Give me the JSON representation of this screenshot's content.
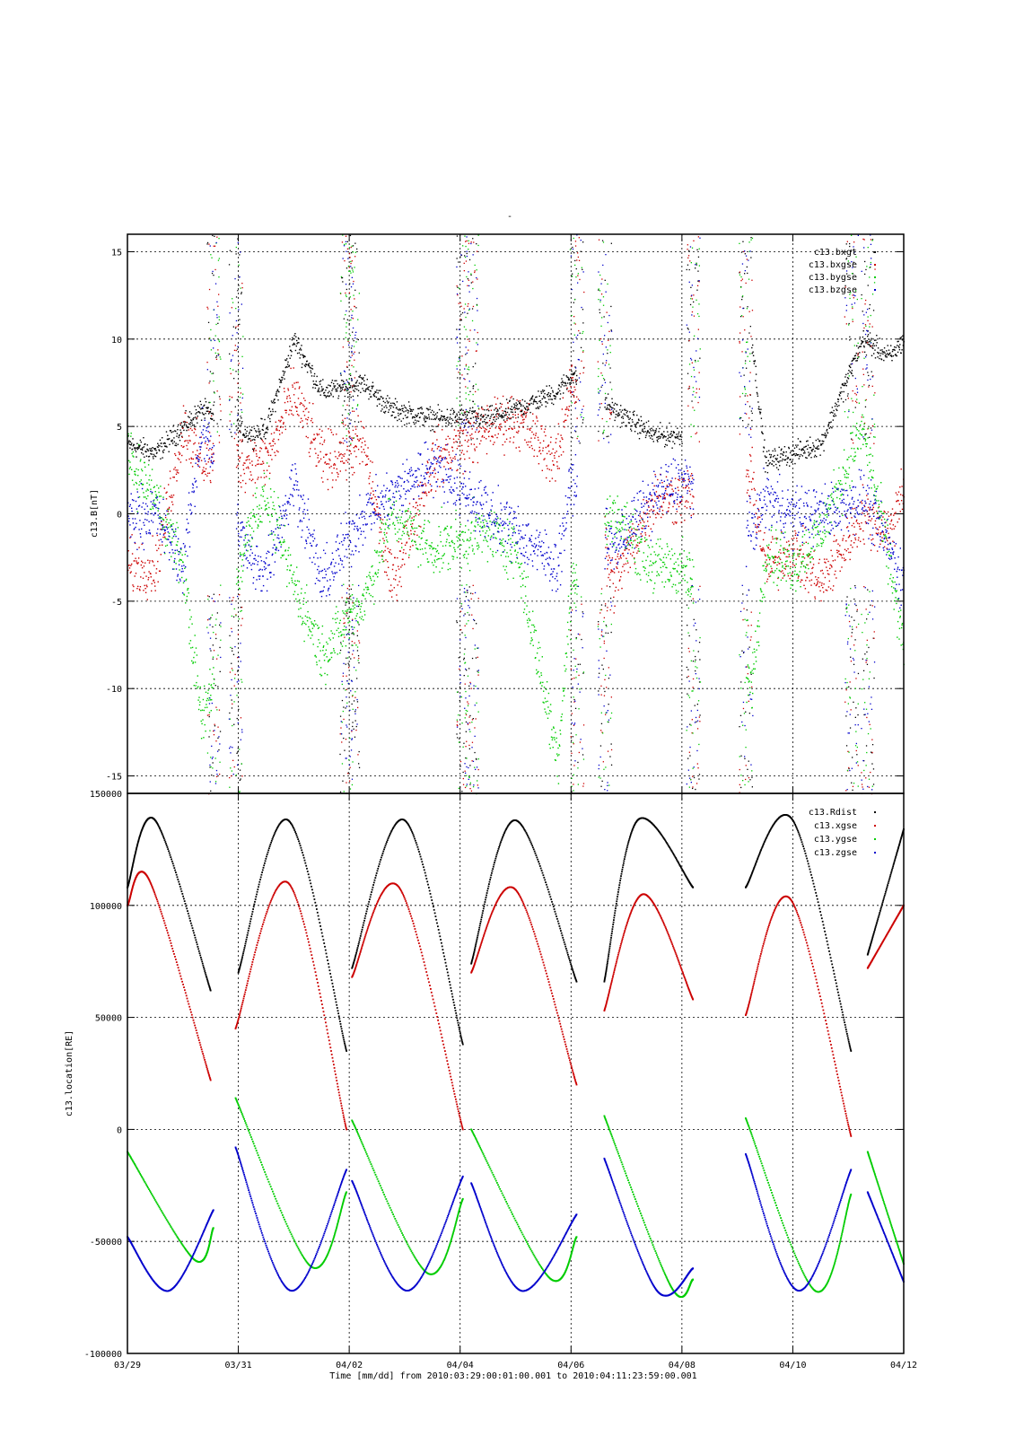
{
  "chart_data": [
    {
      "type": "scatter",
      "title": "-",
      "ylabel": "c13.B[nT]",
      "ylim": [
        -16,
        16
      ],
      "yticks": [
        -15,
        -10,
        -5,
        0,
        5,
        10,
        15
      ],
      "xlim": [
        "2010-03-29",
        "2010-04-12"
      ],
      "grid": true,
      "legend_position": "top-right",
      "series": [
        {
          "name": "c13.bxgt",
          "color": "#000000",
          "x": [
            "03/29",
            "03/29 12:00",
            "03/30",
            "03/30 08:00",
            "03/31 06:00",
            "03/31 12:00",
            "04/01",
            "04/01 12:00",
            "04/02 06:00",
            "04/02 18:00",
            "04/03 12:00",
            "04/04 12:00",
            "04/05",
            "04/05 18:00",
            "04/06",
            "04/06 18:00",
            "04/07 12:00",
            "04/08",
            "04/08 12:00",
            "04/09 06:00",
            "04/09 12:00",
            "04/10",
            "04/10 12:00",
            "04/11 06:00",
            "04/11 18:00",
            "04/12"
          ],
          "values": [
            4.0,
            3.5,
            5.0,
            6.0,
            4.5,
            5.0,
            10.0,
            7.0,
            7.5,
            6.0,
            5.5,
            5.5,
            6.0,
            7.0,
            8.0,
            6.0,
            4.5,
            4.5,
            null,
            10.0,
            3.0,
            3.5,
            4.0,
            10.0,
            9.0,
            10.0
          ]
        },
        {
          "name": "c13.bxgse",
          "color": "#cc0000",
          "x": [
            "03/29",
            "03/29 12:00",
            "03/30",
            "03/30 08:00",
            "03/31 06:00",
            "03/31 12:00",
            "04/01",
            "04/01 12:00",
            "04/02 06:00",
            "04/02 18:00",
            "04/03 12:00",
            "04/04 12:00",
            "04/05",
            "04/05 18:00",
            "04/06",
            "04/06 18:00",
            "04/07 12:00",
            "04/08",
            "04/09 06:00",
            "04/09 12:00",
            "04/10",
            "04/10 12:00",
            "04/11 06:00",
            "04/11 18:00",
            "04/12"
          ],
          "values": [
            -3.0,
            -3.0,
            5.0,
            3.0,
            3.0,
            3.0,
            7.0,
            3.0,
            4.0,
            -4.0,
            3.0,
            5.0,
            5.5,
            3.0,
            8.0,
            -4.0,
            1.0,
            1.0,
            2.0,
            -3.0,
            -2.0,
            -4.0,
            0.0,
            -1.0,
            2.0
          ]
        },
        {
          "name": "c13.bygse",
          "color": "#00cc00",
          "x": [
            "03/29",
            "03/29 12:00",
            "03/30",
            "03/30 08:00",
            "03/31 06:00",
            "03/31 12:00",
            "04/01",
            "04/01 12:00",
            "04/02 06:00",
            "04/02 18:00",
            "04/03 12:00",
            "04/04 12:00",
            "04/05",
            "04/05 18:00",
            "04/06",
            "04/06 18:00",
            "04/07 12:00",
            "04/08",
            "04/09 06:00",
            "04/09 12:00",
            "04/10",
            "04/10 12:00",
            "04/11 06:00",
            "04/11 18:00",
            "04/12"
          ],
          "values": [
            3.0,
            1.0,
            -3.0,
            -12.0,
            0.0,
            1.0,
            -4.0,
            -8.0,
            -5.0,
            0.0,
            -2.0,
            -1.0,
            -2.0,
            -14.0,
            -4.0,
            0.0,
            -3.0,
            -3.0,
            -10.0,
            -2.0,
            -3.0,
            -1.0,
            5.0,
            -3.0,
            -8.0
          ]
        },
        {
          "name": "c13.bzgse",
          "color": "#0000cc",
          "x": [
            "03/29",
            "03/29 12:00",
            "03/30",
            "03/30 08:00",
            "03/31 06:00",
            "03/31 12:00",
            "04/01",
            "04/01 12:00",
            "04/02 06:00",
            "04/02 18:00",
            "04/03 12:00",
            "04/04 12:00",
            "04/05",
            "04/05 18:00",
            "04/06",
            "04/06 18:00",
            "04/07 12:00",
            "04/08",
            "04/09 06:00",
            "04/09 12:00",
            "04/10",
            "04/10 12:00",
            "04/11 06:00",
            "04/11 18:00",
            "04/12"
          ],
          "values": [
            0.0,
            0.0,
            -3.0,
            5.0,
            -3.0,
            -3.0,
            2.0,
            -4.0,
            0.0,
            1.0,
            3.0,
            0.0,
            -1.0,
            -3.0,
            2.0,
            -2.0,
            1.0,
            2.0,
            -1.0,
            1.0,
            0.0,
            0.0,
            1.0,
            -2.0,
            -4.0
          ]
        }
      ]
    },
    {
      "type": "scatter",
      "ylabel": "c13.location[RE]",
      "xlabel": "Time [mm/dd]  from 2010:03:29:00:01:00.001  to  2010:04:11:23:59:00.001",
      "ylim": [
        -100000,
        150000
      ],
      "yticks": [
        -100000,
        -50000,
        0,
        50000,
        100000,
        150000
      ],
      "xlim": [
        "2010-03-29",
        "2010-04-12"
      ],
      "xticks": [
        "03/29",
        "03/31",
        "04/02",
        "04/04",
        "04/06",
        "04/08",
        "04/10",
        "04/12"
      ],
      "grid": true,
      "legend_position": "top-right",
      "orbits": [
        {
          "start_day": 0.0,
          "end_day": 1.55
        },
        {
          "start_day": 1.95,
          "end_day": 3.95
        },
        {
          "start_day": 4.05,
          "end_day": 6.05
        },
        {
          "start_day": 6.2,
          "end_day": 8.1
        },
        {
          "start_day": 8.6,
          "end_day": 10.2
        },
        {
          "start_day": 11.15,
          "end_day": 13.05
        },
        {
          "start_day": 13.35,
          "end_day": 14.0
        }
      ],
      "series": [
        {
          "name": "c13.Rdist",
          "color": "#000000",
          "x": [
            0.0,
            0.5,
            1.5,
            2.0,
            2.9,
            3.95,
            4.05,
            5.0,
            6.05,
            6.2,
            7.0,
            8.1,
            8.6,
            9.2,
            10.2,
            11.15,
            12.0,
            13.05,
            13.35,
            14.0
          ],
          "values": [
            108000,
            138000,
            62000,
            70000,
            138000,
            35000,
            72000,
            138000,
            38000,
            74000,
            138000,
            66000,
            66000,
            138000,
            108000,
            108000,
            138000,
            35000,
            78000,
            134000
          ]
        },
        {
          "name": "c13.xgse",
          "color": "#cc0000",
          "x": [
            0.0,
            0.4,
            1.5,
            1.95,
            2.9,
            3.95,
            4.05,
            4.9,
            6.05,
            6.2,
            7.0,
            8.1,
            8.6,
            9.3,
            10.2,
            11.15,
            11.95,
            13.05,
            13.35,
            14.0
          ],
          "values": [
            100000,
            111000,
            22000,
            45000,
            110000,
            0,
            68000,
            108000,
            0,
            70000,
            107000,
            20000,
            53000,
            105000,
            58000,
            51000,
            103000,
            -3000,
            72000,
            100000
          ]
        },
        {
          "name": "c13.ygse",
          "color": "#00cc00",
          "x": [
            0.0,
            1.2,
            1.55,
            1.95,
            3.3,
            3.95,
            4.05,
            5.4,
            6.05,
            6.2,
            7.6,
            8.1,
            8.6,
            9.8,
            10.2,
            11.15,
            12.4,
            13.05,
            13.35,
            14.0
          ],
          "values": [
            -10000,
            -58000,
            -44000,
            14000,
            -61000,
            -28000,
            4000,
            -64000,
            -31000,
            0,
            -66000,
            -48000,
            6000,
            -70000,
            -67000,
            5000,
            -72000,
            -29000,
            -10000,
            -60000
          ]
        },
        {
          "name": "c13.zgse",
          "color": "#0000cc",
          "x": [
            0.0,
            0.75,
            1.55,
            1.95,
            2.95,
            3.95,
            4.05,
            5.05,
            6.05,
            6.2,
            7.1,
            8.1,
            8.6,
            9.55,
            10.2,
            11.15,
            12.1,
            13.05,
            13.35,
            14.0
          ],
          "values": [
            -48000,
            -72000,
            -36000,
            -8000,
            -72000,
            -18000,
            -23000,
            -72000,
            -21000,
            -24000,
            -72000,
            -38000,
            -13000,
            -72000,
            -62000,
            -11000,
            -72000,
            -18000,
            -28000,
            -68000
          ]
        }
      ]
    }
  ]
}
